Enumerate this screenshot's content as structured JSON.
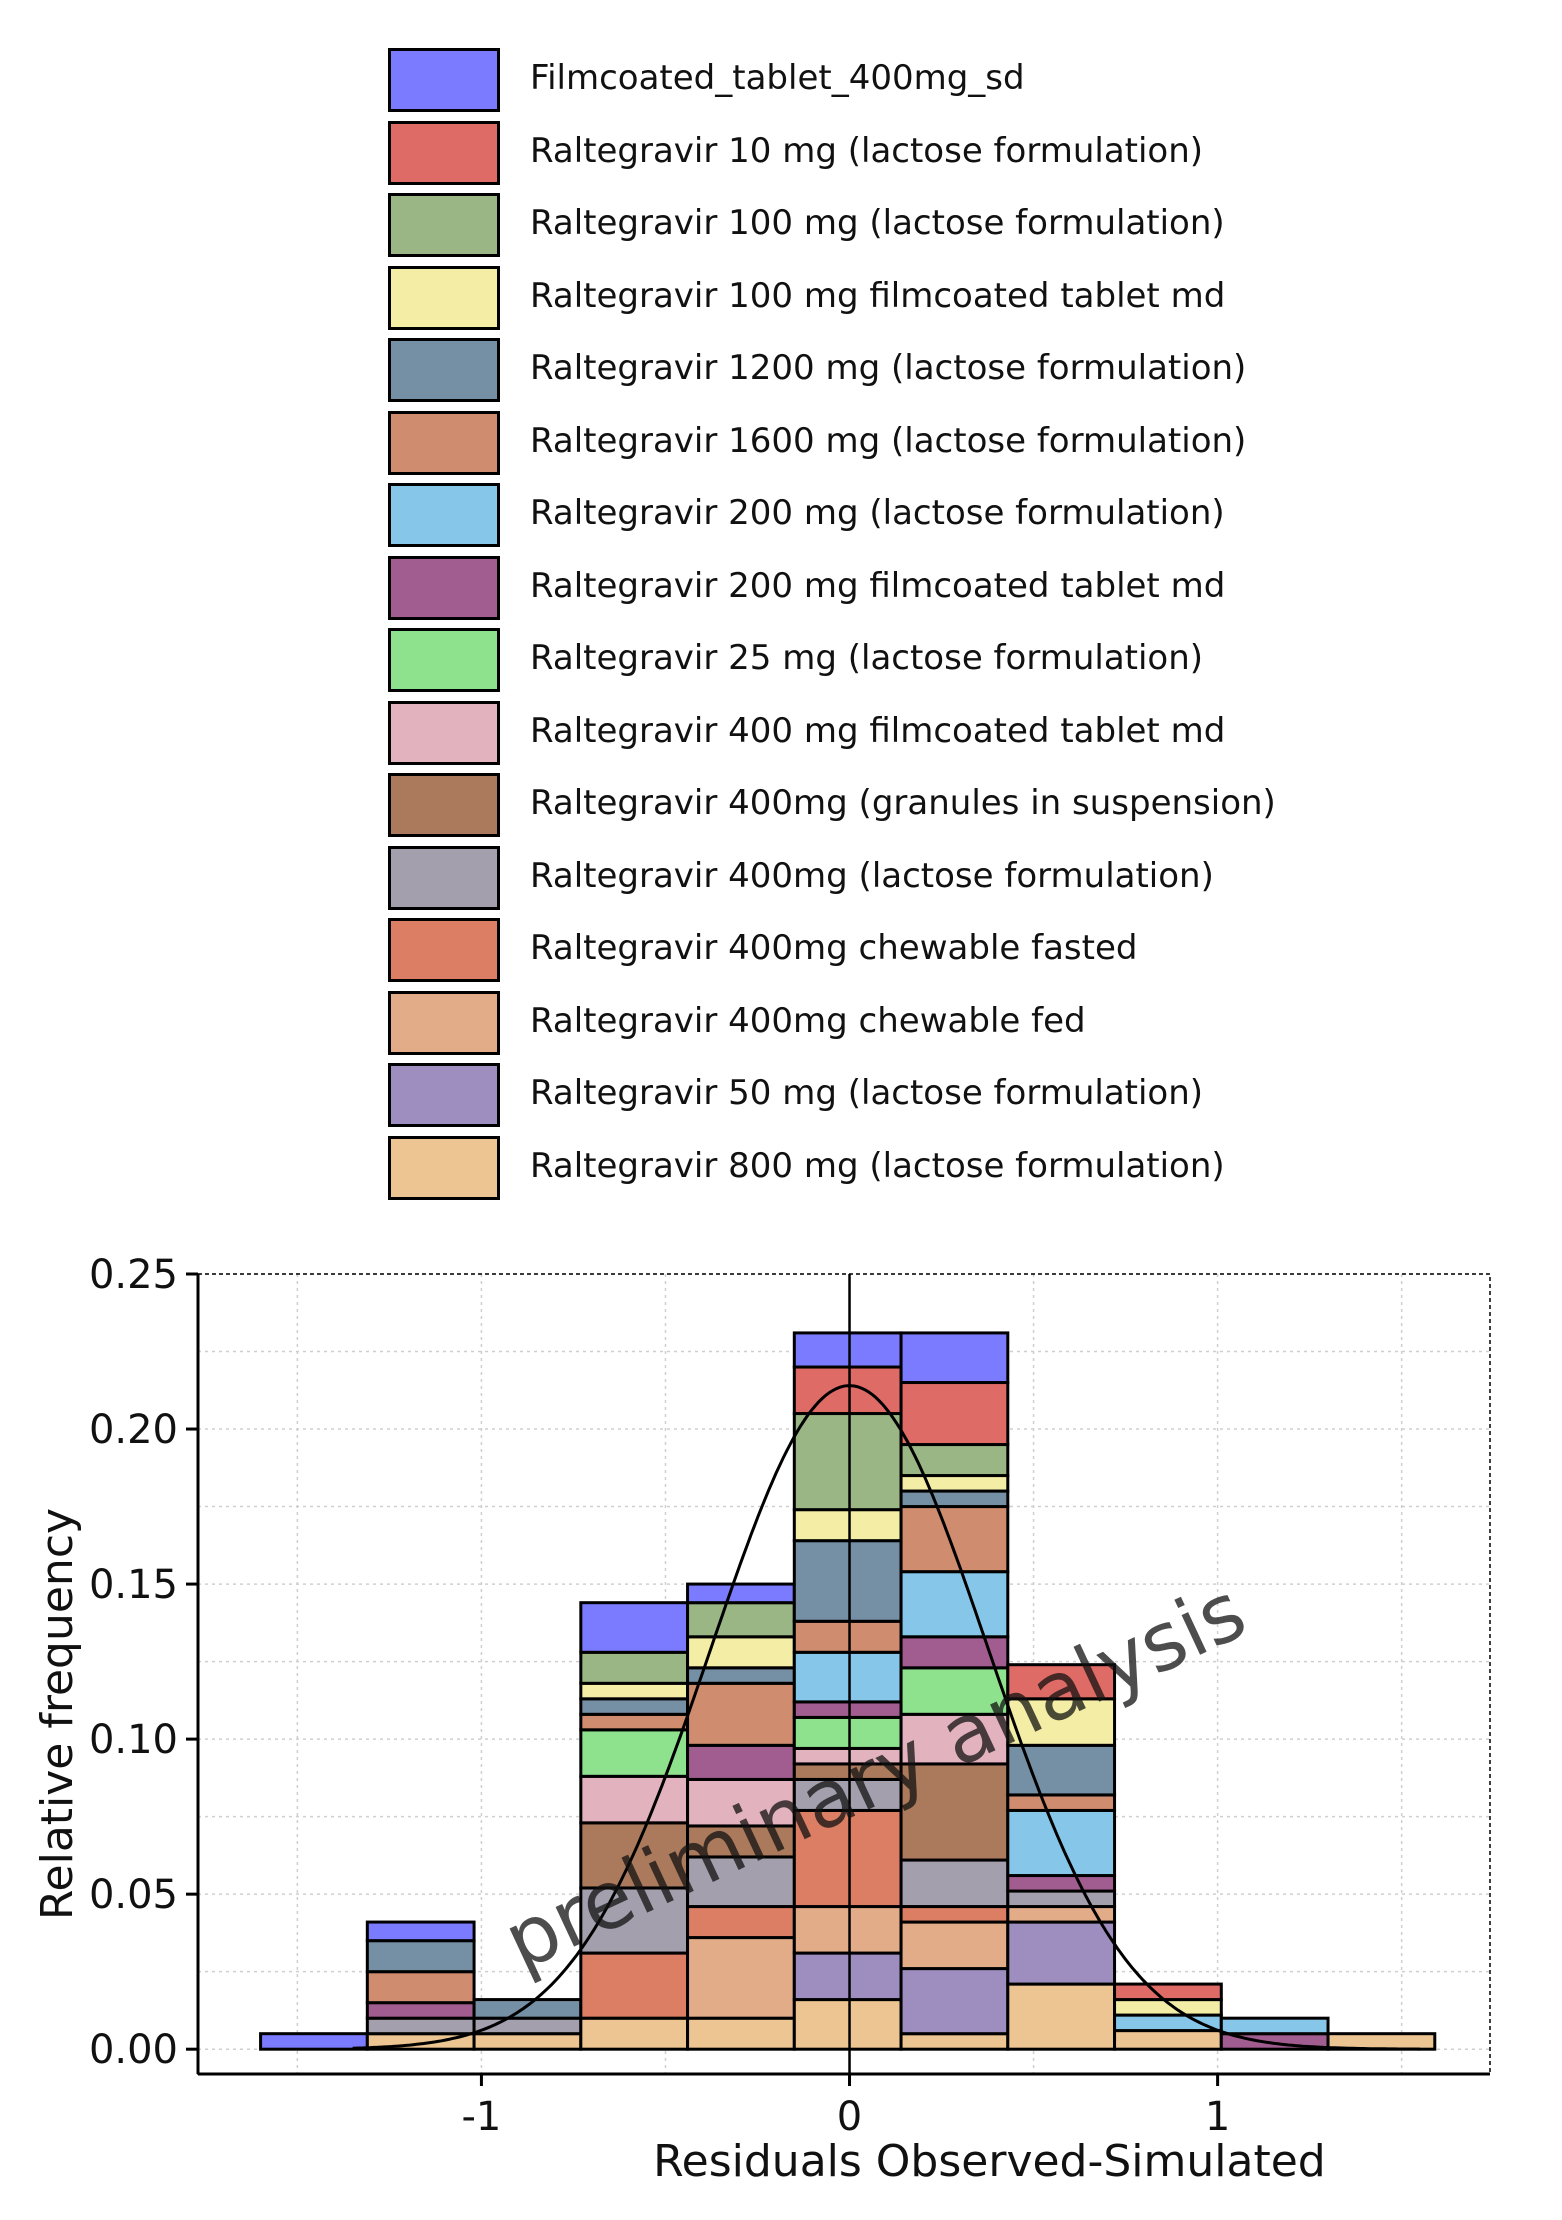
{
  "legend": {
    "items": [
      {
        "label": "Filmcoated_tablet_400mg_sd",
        "color": "#7b7bff"
      },
      {
        "label": "Raltegravir 10 mg (lactose formulation)",
        "color": "#df6b66"
      },
      {
        "label": "Raltegravir 100 mg (lactose formulation)",
        "color": "#9ab684"
      },
      {
        "label": "Raltegravir 100 mg filmcoated tablet md",
        "color": "#f3eda5"
      },
      {
        "label": "Raltegravir 1200 mg (lactose formulation)",
        "color": "#758fa4"
      },
      {
        "label": "Raltegravir 1600 mg (lactose formulation)",
        "color": "#cf8c6e"
      },
      {
        "label": "Raltegravir 200 mg (lactose formulation)",
        "color": "#86c6e8"
      },
      {
        "label": "Raltegravir 200 mg filmcoated tablet md",
        "color": "#a25d90"
      },
      {
        "label": "Raltegravir 25 mg (lactose formulation)",
        "color": "#8ee28d"
      },
      {
        "label": "Raltegravir 400 mg filmcoated tablet md",
        "color": "#e2b2bf"
      },
      {
        "label": "Raltegravir 400mg (granules in suspension)",
        "color": "#ab7a5c"
      },
      {
        "label": "Raltegravir 400mg (lactose formulation)",
        "color": "#a39fad"
      },
      {
        "label": "Raltegravir 400mg chewable fasted",
        "color": "#db7e63"
      },
      {
        "label": "Raltegravir 400mg chewable fed",
        "color": "#e2ac89"
      },
      {
        "label": "Raltegravir 50 mg (lactose formulation)",
        "color": "#9e8dbf"
      },
      {
        "label": "Raltegravir 800 mg (lactose formulation)",
        "color": "#ecc592"
      }
    ]
  },
  "watermark": "preliminary analysis",
  "chart_data": {
    "type": "bar",
    "subtype": "stacked-histogram",
    "xlabel": "Residuals Observed-Simulated",
    "ylabel": "Relative frequency",
    "xlim": [
      -1.77,
      1.74
    ],
    "ylim": [
      -0.008,
      0.25
    ],
    "x_ticks": [
      -1,
      0,
      1
    ],
    "x_tick_labels": [
      "-1",
      "0",
      "1"
    ],
    "y_ticks": [
      0,
      0.05,
      0.1,
      0.15,
      0.2,
      0.25
    ],
    "y_tick_labels": [
      "0.00",
      "0.05",
      "0.10",
      "0.15",
      "0.20",
      "0.25"
    ],
    "grid": true,
    "vline_x": 0,
    "bins": [
      {
        "x0": -1.6,
        "x1": -1.31,
        "segments": [
          {
            "series": 0,
            "value": 0.005
          }
        ]
      },
      {
        "x0": -1.31,
        "x1": -1.02,
        "segments": [
          {
            "series": 15,
            "value": 0.005
          },
          {
            "series": 11,
            "value": 0.005
          },
          {
            "series": 7,
            "value": 0.005
          },
          {
            "series": 5,
            "value": 0.01
          },
          {
            "series": 4,
            "value": 0.01
          },
          {
            "series": 0,
            "value": 0.006
          }
        ]
      },
      {
        "x0": -1.02,
        "x1": -0.73,
        "segments": [
          {
            "series": 15,
            "value": 0.005
          },
          {
            "series": 11,
            "value": 0.005
          },
          {
            "series": 4,
            "value": 0.006
          }
        ]
      },
      {
        "x0": -0.73,
        "x1": -0.44,
        "segments": [
          {
            "series": 15,
            "value": 0.01
          },
          {
            "series": 12,
            "value": 0.021
          },
          {
            "series": 11,
            "value": 0.021
          },
          {
            "series": 10,
            "value": 0.021
          },
          {
            "series": 9,
            "value": 0.015
          },
          {
            "series": 8,
            "value": 0.015
          },
          {
            "series": 5,
            "value": 0.005
          },
          {
            "series": 4,
            "value": 0.005
          },
          {
            "series": 3,
            "value": 0.005
          },
          {
            "series": 2,
            "value": 0.01
          },
          {
            "series": 0,
            "value": 0.016
          }
        ]
      },
      {
        "x0": -0.44,
        "x1": -0.15,
        "segments": [
          {
            "series": 15,
            "value": 0.01
          },
          {
            "series": 13,
            "value": 0.026
          },
          {
            "series": 12,
            "value": 0.01
          },
          {
            "series": 11,
            "value": 0.016
          },
          {
            "series": 10,
            "value": 0.01
          },
          {
            "series": 9,
            "value": 0.015
          },
          {
            "series": 7,
            "value": 0.011
          },
          {
            "series": 5,
            "value": 0.02
          },
          {
            "series": 4,
            "value": 0.005
          },
          {
            "series": 3,
            "value": 0.01
          },
          {
            "series": 2,
            "value": 0.011
          },
          {
            "series": 0,
            "value": 0.006
          }
        ]
      },
      {
        "x0": -0.15,
        "x1": 0.14,
        "segments": [
          {
            "series": 15,
            "value": 0.016
          },
          {
            "series": 14,
            "value": 0.015
          },
          {
            "series": 13,
            "value": 0.015
          },
          {
            "series": 12,
            "value": 0.031
          },
          {
            "series": 11,
            "value": 0.01
          },
          {
            "series": 10,
            "value": 0.005
          },
          {
            "series": 9,
            "value": 0.005
          },
          {
            "series": 8,
            "value": 0.01
          },
          {
            "series": 7,
            "value": 0.005
          },
          {
            "series": 6,
            "value": 0.016
          },
          {
            "series": 5,
            "value": 0.01
          },
          {
            "series": 4,
            "value": 0.026
          },
          {
            "series": 3,
            "value": 0.01
          },
          {
            "series": 2,
            "value": 0.031
          },
          {
            "series": 1,
            "value": 0.015
          },
          {
            "series": 0,
            "value": 0.011
          }
        ]
      },
      {
        "x0": 0.14,
        "x1": 0.43,
        "segments": [
          {
            "series": 15,
            "value": 0.005
          },
          {
            "series": 14,
            "value": 0.021
          },
          {
            "series": 13,
            "value": 0.015
          },
          {
            "series": 12,
            "value": 0.005
          },
          {
            "series": 11,
            "value": 0.015
          },
          {
            "series": 10,
            "value": 0.031
          },
          {
            "series": 9,
            "value": 0.016
          },
          {
            "series": 8,
            "value": 0.015
          },
          {
            "series": 7,
            "value": 0.01
          },
          {
            "series": 6,
            "value": 0.021
          },
          {
            "series": 5,
            "value": 0.021
          },
          {
            "series": 4,
            "value": 0.005
          },
          {
            "series": 3,
            "value": 0.005
          },
          {
            "series": 2,
            "value": 0.01
          },
          {
            "series": 1,
            "value": 0.02
          },
          {
            "series": 0,
            "value": 0.016
          }
        ]
      },
      {
        "x0": 0.43,
        "x1": 0.72,
        "segments": [
          {
            "series": 15,
            "value": 0.021
          },
          {
            "series": 14,
            "value": 0.02
          },
          {
            "series": 13,
            "value": 0.005
          },
          {
            "series": 11,
            "value": 0.005
          },
          {
            "series": 7,
            "value": 0.005
          },
          {
            "series": 6,
            "value": 0.021
          },
          {
            "series": 5,
            "value": 0.005
          },
          {
            "series": 4,
            "value": 0.016
          },
          {
            "series": 3,
            "value": 0.015
          },
          {
            "series": 1,
            "value": 0.011
          }
        ]
      },
      {
        "x0": 0.72,
        "x1": 1.01,
        "segments": [
          {
            "series": 15,
            "value": 0.006
          },
          {
            "series": 6,
            "value": 0.005
          },
          {
            "series": 3,
            "value": 0.005
          },
          {
            "series": 1,
            "value": 0.005
          }
        ]
      },
      {
        "x0": 1.01,
        "x1": 1.3,
        "segments": [
          {
            "series": 7,
            "value": 0.005
          },
          {
            "series": 6,
            "value": 0.005
          }
        ]
      },
      {
        "x0": 1.3,
        "x1": 1.59,
        "segments": [
          {
            "series": 15,
            "value": 0.005
          }
        ]
      }
    ],
    "density_curve": {
      "type": "normal",
      "mean": 0.0,
      "sd": 0.375,
      "peak": 0.214
    }
  }
}
